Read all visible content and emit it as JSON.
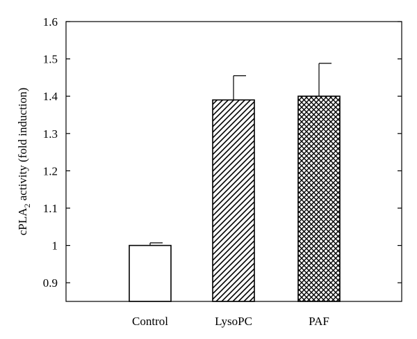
{
  "chart_data": {
    "type": "bar",
    "categories": [
      "Control",
      "LysoPC",
      "PAF"
    ],
    "values": [
      1.0,
      1.39,
      1.4
    ],
    "errors": [
      0.007,
      0.065,
      0.088
    ],
    "fill_patterns": [
      "none",
      "diagonal-hatch",
      "crosshatch"
    ],
    "ylabel_main": "cPLA",
    "ylabel_sub": "2",
    "ylabel_rest": " activity (fold induction)",
    "ylim": [
      0.85,
      1.6
    ],
    "yticks": [
      0.9,
      1,
      1.1,
      1.2,
      1.3,
      1.4,
      1.5,
      1.6
    ],
    "ytick_labels": [
      "0.9",
      "1",
      "1.1",
      "1.2",
      "1.3",
      "1.4",
      "1.5",
      "1.6"
    ],
    "grid": false,
    "colors": {
      "bar_stroke": "#000000",
      "bar_fill": "#ffffff",
      "hatch": "#000000"
    }
  }
}
